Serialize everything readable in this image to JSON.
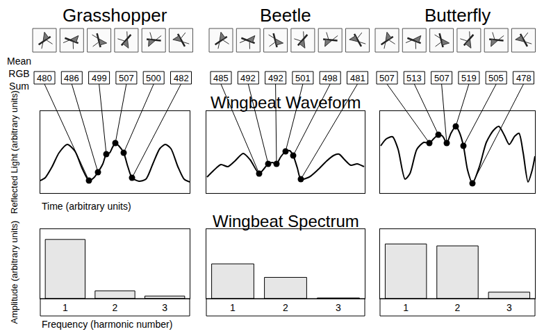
{
  "header": {
    "columns": [
      "Grasshopper",
      "Beetle",
      "Butterfly"
    ],
    "row_label": "Mean RGB Sum",
    "sections": [
      "Wingbeat Waveform",
      "Wingbeat Spectrum"
    ]
  },
  "chart_data": [
    {
      "type": "line",
      "x": [
        0,
        7,
        17,
        27,
        39,
        50,
        60,
        70,
        77,
        83,
        90,
        95,
        100,
        104,
        108,
        113,
        120,
        126,
        132,
        142,
        152,
        162,
        172,
        180,
        188,
        198,
        207,
        215
      ],
      "values": [
        480,
        482,
        490,
        500,
        506,
        501,
        489,
        480,
        482,
        486,
        492,
        499,
        500,
        504,
        507,
        505,
        500,
        490,
        482,
        479.5,
        481,
        492,
        503,
        506,
        503,
        490,
        481,
        479
      ],
      "mean_rgb_sum": {
        "x": [
          70,
          83,
          95,
          108,
          120,
          132
        ],
        "values": [
          480,
          486,
          499,
          507,
          500,
          482
        ]
      },
      "xlim": [
        0,
        215
      ],
      "ylim": [
        471,
        530
      ],
      "xticks": [],
      "yticks": [],
      "tick_labels": false,
      "grid": false,
      "color": "#000000",
      "marker": "circle",
      "x_label": "Time (arbitrary units)",
      "y_label": "Reflected Light (arbitrary units)"
    },
    {
      "type": "line",
      "x": [
        1,
        11,
        21,
        31,
        41,
        53,
        63,
        76,
        83,
        89,
        95,
        101,
        107,
        114,
        120,
        125,
        131,
        136,
        148,
        161,
        173,
        183,
        191,
        199,
        208,
        217,
        227
      ],
      "values": [
        482.5,
        487.5,
        491.5,
        490,
        494,
        499.5,
        495,
        485,
        488.5,
        492,
        493,
        492,
        497,
        501,
        501.5,
        498,
        489,
        481,
        482.5,
        488,
        494,
        498,
        499,
        495,
        491,
        492,
        490
      ],
      "mean_rgb_sum": {
        "x": [
          76,
          89,
          101,
          114,
          125,
          136
        ],
        "values": [
          485,
          492,
          492,
          501,
          498,
          481
        ]
      },
      "xlim": [
        0,
        228
      ],
      "ylim": [
        471,
        530
      ],
      "xticks": [],
      "yticks": [],
      "tick_labels": false,
      "grid": false,
      "color": "#000000",
      "marker": "circle"
    },
    {
      "type": "line",
      "x": [
        1,
        9,
        18,
        26,
        36,
        43,
        53,
        63,
        71,
        77,
        84,
        90,
        96,
        102,
        109,
        114,
        120,
        126,
        133,
        143,
        153,
        163,
        171,
        179,
        186,
        194,
        200,
        206,
        213,
        219,
        223
      ],
      "values": [
        505,
        510,
        511.5,
        502.5,
        481,
        485,
        502.5,
        507.5,
        507,
        510,
        513,
        512,
        507,
        514,
        519,
        515,
        505,
        487.5,
        478,
        490,
        507.5,
        516,
        519,
        512.5,
        506,
        512,
        514,
        500,
        479,
        487.5,
        497.5
      ],
      "mean_rgb_sum": {
        "x": [
          71,
          84,
          96,
          109,
          120,
          133
        ],
        "values": [
          507,
          513,
          507,
          519,
          505,
          478
        ]
      },
      "xlim": [
        0,
        223
      ],
      "ylim": [
        471,
        530
      ],
      "xticks": [],
      "yticks": [],
      "tick_labels": false,
      "grid": false,
      "color": "#000000",
      "marker": "circle"
    },
    {
      "type": "bar",
      "x": [
        1,
        2,
        3
      ],
      "values": [
        92,
        12,
        4
      ],
      "xlim": [
        0.5,
        3.5
      ],
      "ylim": [
        0,
        108
      ],
      "xticks": [
        1,
        2,
        3
      ],
      "yticks": [],
      "tick_labels": "x",
      "grid": false,
      "color": "#e6e6e6",
      "x_label": "Frequency (harmonic number)",
      "y_label": "Amplitude (arbitrary units)"
    },
    {
      "type": "bar",
      "x": [
        1,
        2,
        3
      ],
      "values": [
        54,
        33,
        1
      ],
      "xlim": [
        0.5,
        3.5
      ],
      "ylim": [
        0,
        108
      ],
      "xticks": [
        1,
        2,
        3
      ],
      "yticks": [],
      "tick_labels": "x",
      "grid": false,
      "color": "#e6e6e6"
    },
    {
      "type": "bar",
      "x": [
        1,
        2,
        3
      ],
      "values": [
        85,
        82,
        10
      ],
      "xlim": [
        0.5,
        3.5
      ],
      "ylim": [
        0,
        108
      ],
      "xticks": [
        1,
        2,
        3
      ],
      "yticks": [],
      "tick_labels": "x",
      "grid": false,
      "color": "#e6e6e6"
    }
  ]
}
